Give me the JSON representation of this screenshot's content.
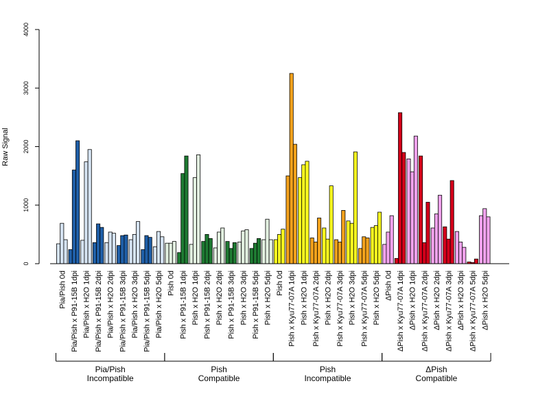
{
  "chart_data": {
    "type": "bar",
    "ylabel": "Raw Signal",
    "ylim": [
      0,
      4000
    ],
    "yticks": [
      0,
      1000,
      2000,
      3000,
      4000
    ],
    "categories": [
      "Pia/Pish 0d",
      "Pia/Pish x P91-15B 1dpi",
      "Pia/Pish x H2O 1dpi",
      "Pia/Pish x P91-15B 2dpi",
      "Pia/Pish x H2O 2dpi",
      "Pia/Pish x P91-15B 3dpi",
      "Pia/Pish x H2O 3dpi",
      "Pia/Pish x P91-15B 5dpi",
      "Pia/Pish x H2O 5dpi",
      "Pish 0d",
      "Pish x P91-15B 1dpi",
      "Pish x H2O 1dpi",
      "Pish x P91-15B 2dpi",
      "Pish x H2O 2dpi",
      "Pish x P91-15B 3dpi",
      "Pish x H2O 3dpi",
      "Pish x P91-15B 5dpi",
      "Pish x H2O 5dpi",
      "Pish 0d",
      "Pish x Kyu77-07A 1dpi",
      "Pish x H2O 1dpi",
      "Pish x Kyu77-07A 2dpi",
      "Pish x H2O 2dpi",
      "Pish x Kyu77-07A 3dpi",
      "Pish x H2O 3dpi",
      "Pish x Kyu77-07A 5dpi",
      "Pish x H2O 5dpi",
      "ΔPish 0d",
      "ΔPish x Kyu77-07A 1dpi",
      "ΔPish x H2O 1dpi",
      "ΔPish x Kyu77-07A 2dpi",
      "ΔPish x H2O 2dpi",
      "ΔPish x Kyu77-07A 3dpi",
      "ΔPish x H2O 3dpi",
      "ΔPish x Kyu77-07A 5dpi",
      "ΔPish x H2O 5dpi"
    ],
    "colors": [
      "#d6e4f3",
      "#1f5fa8",
      "#d6e4f3",
      "#1f5fa8",
      "#d6e4f3",
      "#1f5fa8",
      "#d6e4f3",
      "#1f5fa8",
      "#d6e4f3",
      "#e3f1e1",
      "#1e7a32",
      "#e3f1e1",
      "#1e7a32",
      "#e3f1e1",
      "#1e7a32",
      "#e3f1e1",
      "#1e7a32",
      "#e3f1e1",
      "#ffff1f",
      "#f4a21c",
      "#ffff1f",
      "#f4a21c",
      "#ffff1f",
      "#f4a21c",
      "#ffff1f",
      "#f4a21c",
      "#ffff1f",
      "#f2a3ee",
      "#d4001a",
      "#f2a3ee",
      "#d4001a",
      "#f2a3ee",
      "#d4001a",
      "#f2a3ee",
      "#d4001a",
      "#f2a3ee"
    ],
    "values": [
      [
        340,
        690,
        410
      ],
      [
        240,
        1600,
        2100
      ],
      [
        400,
        1740,
        1950
      ],
      [
        360,
        680,
        620
      ],
      [
        360,
        540,
        520
      ],
      [
        310,
        480,
        490
      ],
      [
        410,
        500,
        720
      ],
      [
        240,
        480,
        450
      ],
      [
        290,
        550,
        460
      ],
      [
        350,
        350,
        380
      ],
      [
        190,
        1540,
        1840
      ],
      [
        330,
        1470,
        1860
      ],
      [
        380,
        500,
        430
      ],
      [
        270,
        540,
        610
      ],
      [
        380,
        260,
        360
      ],
      [
        370,
        560,
        580
      ],
      [
        260,
        350,
        430
      ],
      [
        410,
        760,
        410
      ],
      [
        410,
        500,
        590
      ],
      [
        1500,
        3250,
        2040
      ],
      [
        1470,
        1690,
        1750
      ],
      [
        440,
        370,
        780
      ],
      [
        610,
        420,
        1330
      ],
      [
        410,
        370,
        910
      ],
      [
        730,
        690,
        1910
      ],
      [
        260,
        460,
        440
      ],
      [
        620,
        650,
        880
      ],
      [
        330,
        540,
        820
      ],
      [
        90,
        2580,
        1900
      ],
      [
        1790,
        1570,
        2180
      ],
      [
        1840,
        360,
        1050
      ],
      [
        610,
        850,
        1170
      ],
      [
        630,
        420,
        1420
      ],
      [
        550,
        370,
        280
      ],
      [
        30,
        20,
        80
      ],
      [
        820,
        940,
        800
      ]
    ],
    "groups": [
      {
        "line1": "Pia/Pish",
        "line2": "Incompatible",
        "start": 0,
        "end": 8
      },
      {
        "line1": "Pish",
        "line2": "Compatible",
        "start": 9,
        "end": 17
      },
      {
        "line1": "Pish",
        "line2": "Incompatible",
        "start": 18,
        "end": 26
      },
      {
        "line1": "ΔPish",
        "line2": "Compatible",
        "start": 27,
        "end": 35
      }
    ]
  }
}
